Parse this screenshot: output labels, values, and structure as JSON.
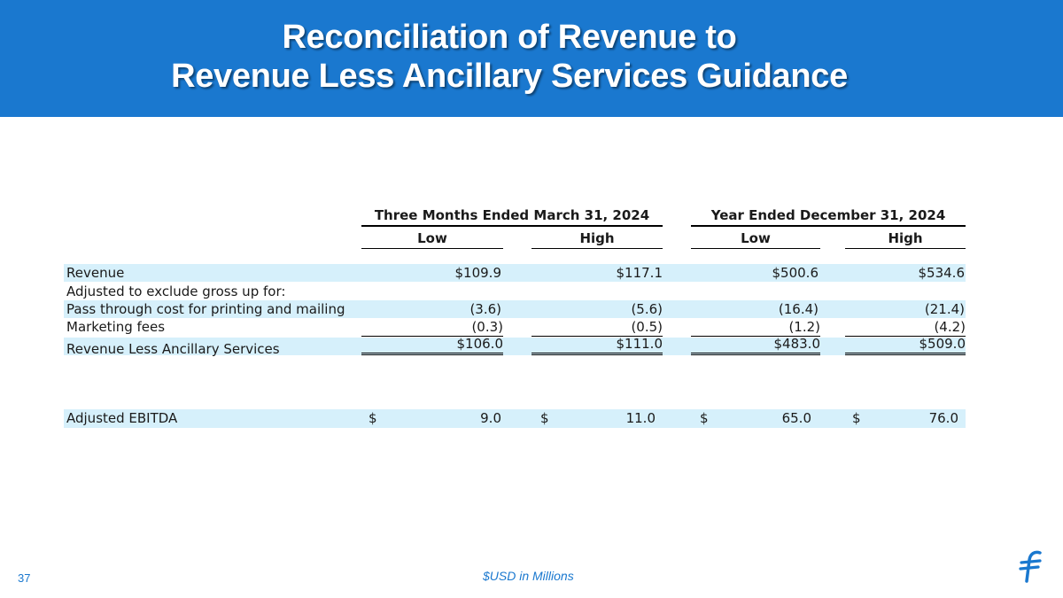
{
  "header": {
    "title_line1": "Reconciliation of Revenue to",
    "title_line2": "Revenue Less Ancillary Services Guidance"
  },
  "table": {
    "period_headers": [
      "Three Months Ended March 31, 2024",
      "Year Ended December 31, 2024"
    ],
    "column_headers": [
      "Low",
      "High",
      "Low",
      "High"
    ],
    "rows": [
      {
        "label": "Revenue",
        "values": [
          "$109.9",
          "$117.1",
          "$500.6",
          "$534.6"
        ]
      },
      {
        "label": "Adjusted to exclude gross up for:",
        "values": [
          "",
          "",
          "",
          ""
        ]
      },
      {
        "label": "Pass through cost for printing and mailing",
        "values": [
          "(3.6)",
          "(5.6)",
          "(16.4)",
          "(21.4)"
        ]
      },
      {
        "label": "Marketing fees",
        "values": [
          "(0.3)",
          "(0.5)",
          "(1.2)",
          "(4.2)"
        ]
      },
      {
        "label": "Revenue Less Ancillary Services",
        "values": [
          "$106.0",
          "$111.0",
          "$483.0",
          "$509.0"
        ]
      }
    ],
    "ebitda": {
      "label": "Adjusted EBITDA",
      "currency": "$",
      "values": [
        "9.0",
        "11.0",
        "65.0",
        "76.0"
      ]
    }
  },
  "footer": {
    "page_number": "37",
    "note": "$USD in Millions",
    "logo_icon": "flywire-f-logo-icon"
  },
  "colors": {
    "header_bg": "#1a78cf",
    "row_shade": "#d6f0fb",
    "footer_text": "#1a78cf"
  }
}
